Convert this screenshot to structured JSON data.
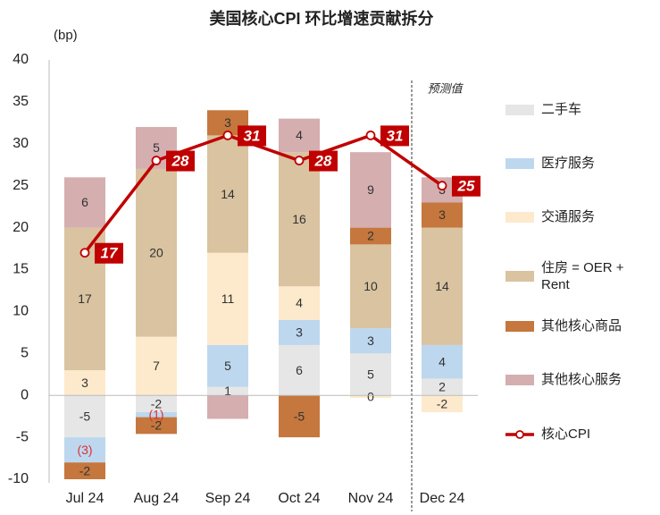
{
  "chart_data": {
    "type": "stacked_bar_line",
    "title": "美国核心CPI 环比增速贡献拆分",
    "y_label": "(bp)",
    "annotation": "预测值",
    "categories": [
      "Jul 24",
      "Aug 24",
      "Sep 24",
      "Oct 24",
      "Nov 24",
      "Dec 24"
    ],
    "ylim": [
      -10,
      40
    ],
    "yticks": [
      -10,
      -5,
      0,
      5,
      10,
      15,
      20,
      25,
      30,
      35,
      40
    ],
    "series": [
      {
        "name": "二手车",
        "color": "#e6e6e6",
        "values": [
          -5,
          -2,
          1,
          6,
          5,
          2
        ]
      },
      {
        "name": "医疗服务",
        "color": "#bdd7ee",
        "values": [
          -3,
          -0.6,
          5,
          3,
          3,
          4
        ],
        "value_labels": [
          "(3)",
          "(1)",
          "5",
          "3",
          "3",
          "4"
        ]
      },
      {
        "name": "交通服务",
        "color": "#fde9cc",
        "values": [
          3,
          7,
          11,
          4,
          -0.3,
          -2
        ],
        "value_labels": [
          "3",
          "7",
          "11",
          "4",
          "0",
          "-2"
        ]
      },
      {
        "name": "住房 = OER + Rent",
        "color": "#d9c3a0",
        "values": [
          17,
          20,
          14,
          16,
          10,
          14
        ]
      },
      {
        "name": "其他核心商品",
        "color": "#c5773d",
        "values": [
          -2,
          -2,
          3,
          -5,
          2,
          3
        ]
      },
      {
        "name": "其他核心服务",
        "color": "#d5aeb0",
        "values": [
          6,
          5,
          -2.8,
          4,
          9,
          3
        ],
        "value_labels": [
          "6",
          "5",
          null,
          "4",
          "9",
          "3"
        ]
      },
      {
        "name": "核心CPI",
        "color": "#c00000",
        "type": "line",
        "values": [
          17,
          28,
          31,
          28,
          31,
          25
        ]
      }
    ]
  }
}
